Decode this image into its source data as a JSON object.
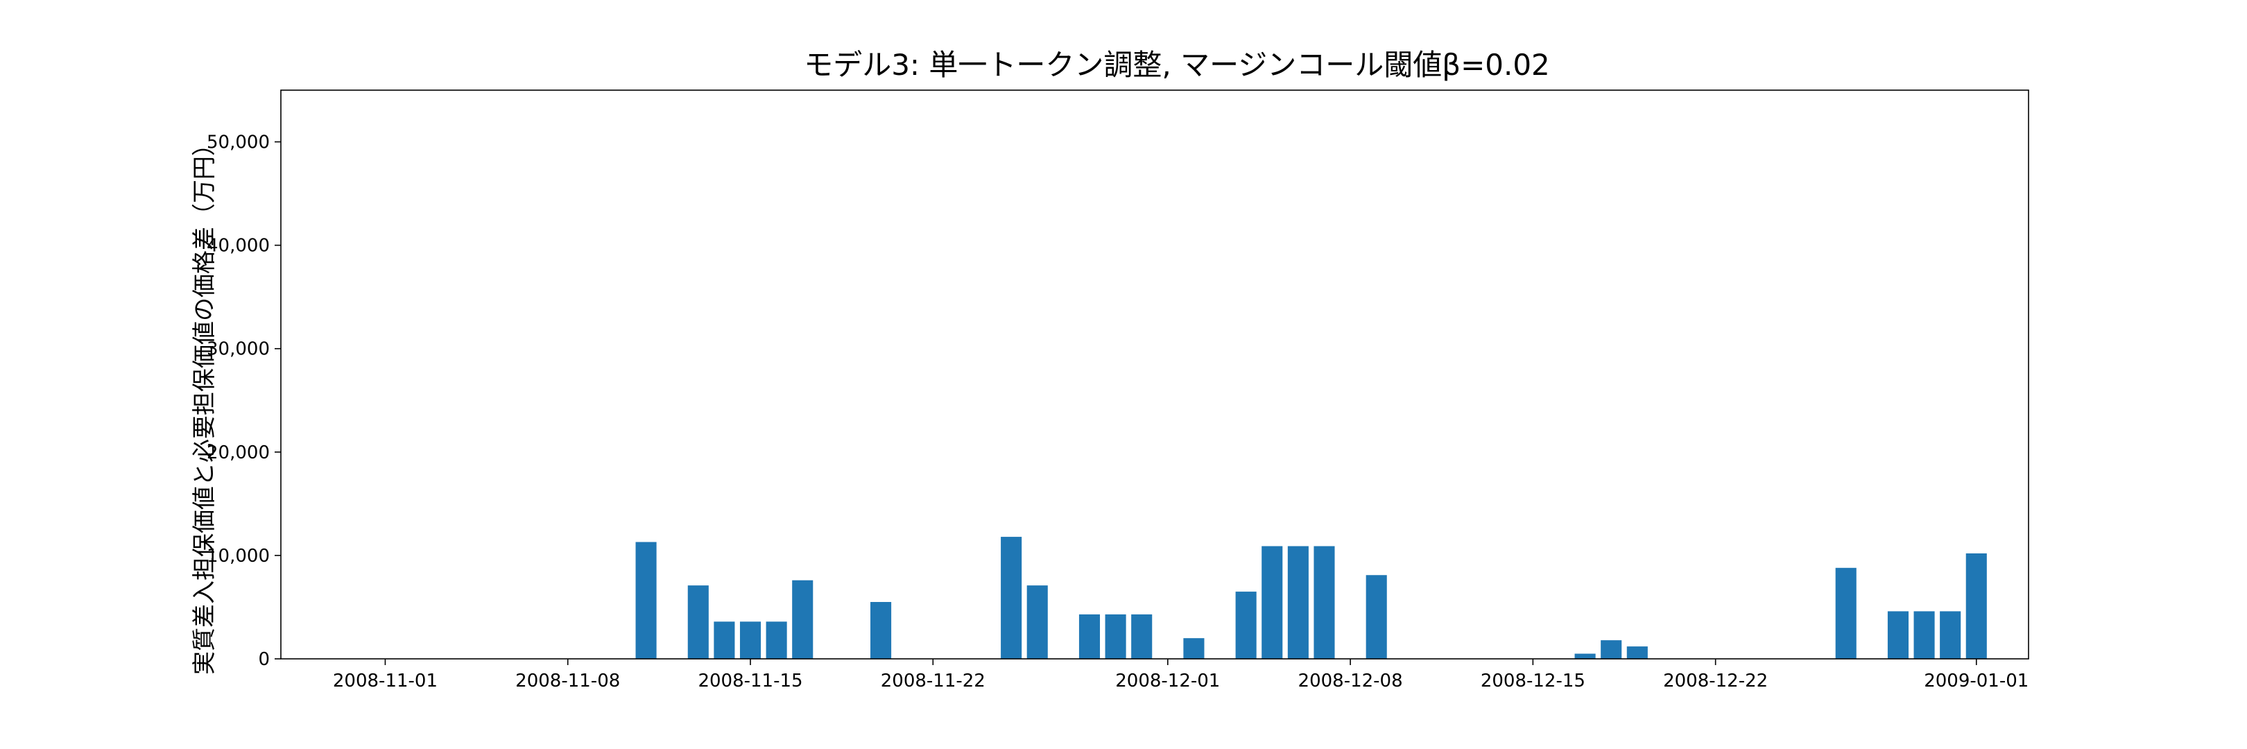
{
  "chart_data": {
    "type": "bar",
    "title": "モデル3: 単一トークン調整, マージンコール閾値β=0.02",
    "xlabel": "",
    "ylabel": "実質差入担保価値と必要担保価値の価格差（万円）",
    "ylim": [
      0,
      55000
    ],
    "xlim": [
      "2008-10-28",
      "2009-01-03"
    ],
    "yticks": [
      0,
      10000,
      20000,
      30000,
      40000,
      50000
    ],
    "ytick_labels": [
      "0",
      "10,000",
      "20,000",
      "30,000",
      "40,000",
      "50,000"
    ],
    "xticks": [
      "2008-11-01",
      "2008-11-08",
      "2008-11-15",
      "2008-11-22",
      "2008-12-01",
      "2008-12-08",
      "2008-12-15",
      "2008-12-22",
      "2009-01-01"
    ],
    "grid": false,
    "color": "#1f77b4",
    "x": [
      "2008-11-11",
      "2008-11-13",
      "2008-11-14",
      "2008-11-15",
      "2008-11-16",
      "2008-11-17",
      "2008-11-20",
      "2008-11-25",
      "2008-11-26",
      "2008-11-28",
      "2008-11-29",
      "2008-11-30",
      "2008-12-02",
      "2008-12-04",
      "2008-12-05",
      "2008-12-06",
      "2008-12-07",
      "2008-12-09",
      "2008-12-17",
      "2008-12-18",
      "2008-12-19",
      "2008-12-27",
      "2008-12-29",
      "2008-12-30",
      "2008-12-31",
      "2009-01-01"
    ],
    "values": [
      11300,
      7100,
      3600,
      3600,
      3600,
      7600,
      5500,
      11800,
      7100,
      4300,
      4300,
      4300,
      2000,
      6500,
      10900,
      10900,
      10900,
      8100,
      500,
      1800,
      1200,
      8800,
      4600,
      4600,
      4600,
      10200
    ]
  }
}
